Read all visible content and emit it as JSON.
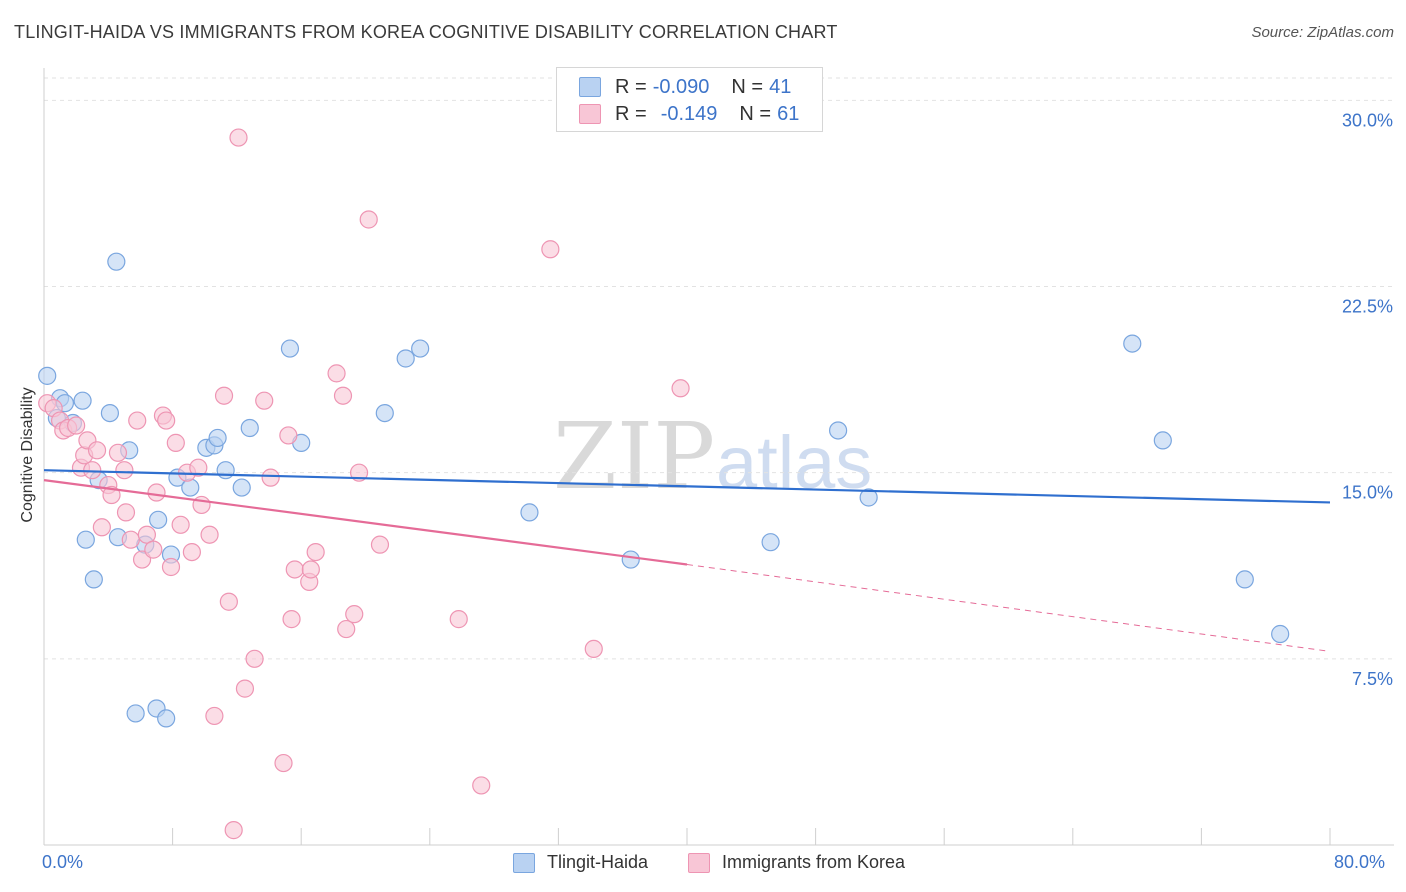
{
  "title": "TLINGIT-HAIDA VS IMMIGRANTS FROM KOREA COGNITIVE DISABILITY CORRELATION CHART",
  "source": "Source: ZipAtlas.com",
  "watermark": {
    "zip": "ZIP",
    "atlas": "atlas"
  },
  "legend_top": [
    {
      "r_label": "R =",
      "r_value": "-0.090",
      "n_label": "N =",
      "n_value": "41"
    },
    {
      "r_label": "R =",
      "r_value": "-0.149",
      "n_label": "N =",
      "n_value": "61"
    }
  ],
  "legend_bottom": [
    {
      "label": "Tlingit-Haida"
    },
    {
      "label": "Immigrants from Korea"
    }
  ],
  "colors": {
    "blue_fill": "#b9d2f2",
    "blue_stroke": "#7aa6df",
    "blue_line": "#2f6fcf",
    "pink_fill": "#f8c6d6",
    "pink_stroke": "#ee95b3",
    "pink_line": "#e56b97",
    "axis_text": "#3d74c9",
    "grid": "#e2e2e2"
  },
  "chart_data": {
    "type": "scatter",
    "title": "TLINGIT-HAIDA VS IMMIGRANTS FROM KOREA COGNITIVE DISABILITY CORRELATION CHART",
    "xlabel": "",
    "ylabel": "Cognitive Disability",
    "xlim": [
      0,
      80
    ],
    "ylim": [
      0,
      30.9
    ],
    "x_tick_labels": [
      "0.0%",
      "80.0%"
    ],
    "y_ticks": [
      7.5,
      15.0,
      22.5,
      30.0
    ],
    "y_tick_labels": [
      "7.5%",
      "15.0%",
      "22.5%",
      "30.0%"
    ],
    "grid": true,
    "legend_placement": "top-center",
    "series": [
      {
        "name": "Tlingit-Haida",
        "color": "blue",
        "trend": {
          "x": [
            0,
            80
          ],
          "y": [
            15.1,
            13.8
          ],
          "dashed_from": null
        },
        "points": [
          [
            0.2,
            18.9
          ],
          [
            0.8,
            17.2
          ],
          [
            1.0,
            18.0
          ],
          [
            1.3,
            17.8
          ],
          [
            1.8,
            17.0
          ],
          [
            2.4,
            17.9
          ],
          [
            2.6,
            12.3
          ],
          [
            3.1,
            10.7
          ],
          [
            3.4,
            14.7
          ],
          [
            4.1,
            17.4
          ],
          [
            4.5,
            23.5
          ],
          [
            4.6,
            12.4
          ],
          [
            5.3,
            15.9
          ],
          [
            5.7,
            5.3
          ],
          [
            6.3,
            12.1
          ],
          [
            7.0,
            5.5
          ],
          [
            7.1,
            13.1
          ],
          [
            7.6,
            5.1
          ],
          [
            7.9,
            11.7
          ],
          [
            8.3,
            14.8
          ],
          [
            9.1,
            14.4
          ],
          [
            10.1,
            16.0
          ],
          [
            10.6,
            16.1
          ],
          [
            10.8,
            16.4
          ],
          [
            11.3,
            15.1
          ],
          [
            12.3,
            14.4
          ],
          [
            12.8,
            16.8
          ],
          [
            15.3,
            20.0
          ],
          [
            16.0,
            16.2
          ],
          [
            21.2,
            17.4
          ],
          [
            22.5,
            19.6
          ],
          [
            23.4,
            20.0
          ],
          [
            30.2,
            13.4
          ],
          [
            36.5,
            11.5
          ],
          [
            45.2,
            12.2
          ],
          [
            49.4,
            16.7
          ],
          [
            51.3,
            14.0
          ],
          [
            67.7,
            20.2
          ],
          [
            69.6,
            16.3
          ],
          [
            74.7,
            10.7
          ],
          [
            76.9,
            8.5
          ]
        ]
      },
      {
        "name": "Immigrants from Korea",
        "color": "pink",
        "trend": {
          "x": [
            0,
            40,
            80
          ],
          "y": [
            14.7,
            11.3,
            7.8
          ],
          "dashed_from": 40
        },
        "points": [
          [
            0.2,
            17.8
          ],
          [
            0.6,
            17.6
          ],
          [
            1.0,
            17.1
          ],
          [
            1.2,
            16.7
          ],
          [
            1.5,
            16.8
          ],
          [
            2.0,
            16.9
          ],
          [
            2.3,
            15.2
          ],
          [
            2.5,
            15.7
          ],
          [
            2.7,
            16.3
          ],
          [
            3.0,
            15.1
          ],
          [
            3.3,
            15.9
          ],
          [
            3.6,
            12.8
          ],
          [
            4.0,
            14.5
          ],
          [
            4.2,
            14.1
          ],
          [
            4.6,
            15.8
          ],
          [
            5.0,
            15.1
          ],
          [
            5.1,
            13.4
          ],
          [
            5.4,
            12.3
          ],
          [
            5.8,
            17.1
          ],
          [
            6.1,
            11.5
          ],
          [
            6.4,
            12.5
          ],
          [
            6.8,
            11.9
          ],
          [
            7.0,
            14.2
          ],
          [
            7.4,
            17.3
          ],
          [
            7.6,
            17.1
          ],
          [
            7.9,
            11.2
          ],
          [
            8.2,
            16.2
          ],
          [
            8.5,
            12.9
          ],
          [
            8.9,
            15.0
          ],
          [
            9.2,
            11.8
          ],
          [
            9.6,
            15.2
          ],
          [
            9.8,
            13.7
          ],
          [
            10.3,
            12.5
          ],
          [
            10.6,
            5.2
          ],
          [
            11.2,
            18.1
          ],
          [
            11.5,
            9.8
          ],
          [
            11.8,
            0.6
          ],
          [
            12.1,
            28.5
          ],
          [
            12.5,
            6.3
          ],
          [
            13.1,
            7.5
          ],
          [
            13.7,
            17.9
          ],
          [
            14.1,
            14.8
          ],
          [
            14.9,
            3.3
          ],
          [
            15.2,
            16.5
          ],
          [
            15.4,
            9.1
          ],
          [
            15.6,
            11.1
          ],
          [
            16.5,
            10.6
          ],
          [
            16.6,
            11.1
          ],
          [
            16.9,
            11.8
          ],
          [
            18.2,
            19.0
          ],
          [
            18.6,
            18.1
          ],
          [
            18.8,
            8.7
          ],
          [
            19.3,
            9.3
          ],
          [
            19.6,
            15.0
          ],
          [
            20.2,
            25.2
          ],
          [
            20.9,
            12.1
          ],
          [
            25.8,
            9.1
          ],
          [
            27.2,
            2.4
          ],
          [
            31.5,
            24.0
          ],
          [
            34.2,
            7.9
          ],
          [
            39.6,
            18.4
          ]
        ]
      }
    ]
  }
}
